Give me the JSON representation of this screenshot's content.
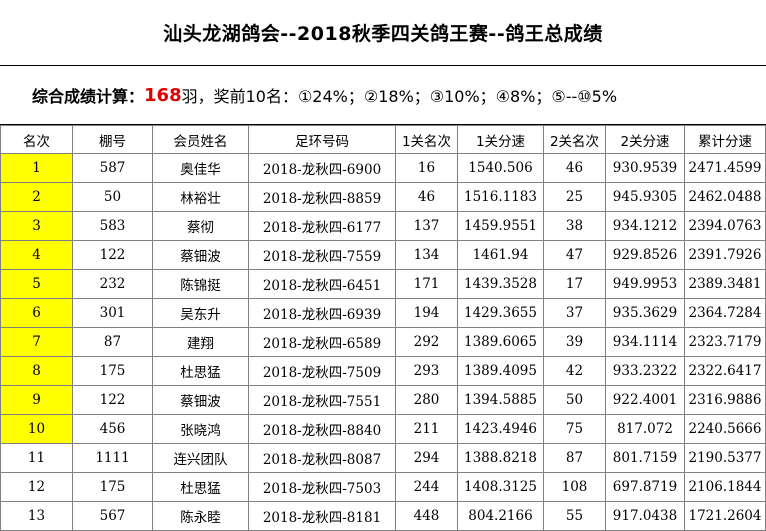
{
  "title": "汕头龙湖鸽会--2018秋季四关鸽王赛--鸽王总成绩",
  "formula": {
    "label": "综合成绩计算：",
    "count": "168",
    "after_count": "羽，奖前10名：①24%；②18%；③10%；④8%；⑤--⑩5%"
  },
  "highlight_color": "#ffff00",
  "columns": [
    "名次",
    "棚号",
    "会员姓名",
    "足环号码",
    "1关名次",
    "1关分速",
    "2关名次",
    "2关分速",
    "累计分速"
  ],
  "rows": [
    {
      "rank": "1",
      "loft": "587",
      "name": "奥佳华",
      "ring": "2018-龙秋四-6900",
      "r1": "16",
      "s1": "1540.506",
      "r2": "46",
      "s2": "930.9539",
      "total": "2471.4599",
      "highlight": true
    },
    {
      "rank": "2",
      "loft": "50",
      "name": "林裕壮",
      "ring": "2018-龙秋四-8859",
      "r1": "46",
      "s1": "1516.1183",
      "r2": "25",
      "s2": "945.9305",
      "total": "2462.0488",
      "highlight": true
    },
    {
      "rank": "3",
      "loft": "583",
      "name": "蔡彻",
      "ring": "2018-龙秋四-6177",
      "r1": "137",
      "s1": "1459.9551",
      "r2": "38",
      "s2": "934.1212",
      "total": "2394.0763",
      "highlight": true
    },
    {
      "rank": "4",
      "loft": "122",
      "name": "蔡钿波",
      "ring": "2018-龙秋四-7559",
      "r1": "134",
      "s1": "1461.94",
      "r2": "47",
      "s2": "929.8526",
      "total": "2391.7926",
      "highlight": true
    },
    {
      "rank": "5",
      "loft": "232",
      "name": "陈锦挺",
      "ring": "2018-龙秋四-6451",
      "r1": "171",
      "s1": "1439.3528",
      "r2": "17",
      "s2": "949.9953",
      "total": "2389.3481",
      "highlight": true
    },
    {
      "rank": "6",
      "loft": "301",
      "name": "吴东升",
      "ring": "2018-龙秋四-6939",
      "r1": "194",
      "s1": "1429.3655",
      "r2": "37",
      "s2": "935.3629",
      "total": "2364.7284",
      "highlight": true
    },
    {
      "rank": "7",
      "loft": "87",
      "name": "建翔",
      "ring": "2018-龙秋四-6589",
      "r1": "292",
      "s1": "1389.6065",
      "r2": "39",
      "s2": "934.1114",
      "total": "2323.7179",
      "highlight": true
    },
    {
      "rank": "8",
      "loft": "175",
      "name": "杜思猛",
      "ring": "2018-龙秋四-7509",
      "r1": "293",
      "s1": "1389.4095",
      "r2": "42",
      "s2": "933.2322",
      "total": "2322.6417",
      "highlight": true
    },
    {
      "rank": "9",
      "loft": "122",
      "name": "蔡钿波",
      "ring": "2018-龙秋四-7551",
      "r1": "280",
      "s1": "1394.5885",
      "r2": "50",
      "s2": "922.4001",
      "total": "2316.9886",
      "highlight": true
    },
    {
      "rank": "10",
      "loft": "456",
      "name": "张晓鸿",
      "ring": "2018-龙秋四-8840",
      "r1": "211",
      "s1": "1423.4946",
      "r2": "75",
      "s2": "817.072",
      "total": "2240.5666",
      "highlight": true
    },
    {
      "rank": "11",
      "loft": "1111",
      "name": "连兴团队",
      "ring": "2018-龙秋四-8087",
      "r1": "294",
      "s1": "1388.8218",
      "r2": "87",
      "s2": "801.7159",
      "total": "2190.5377",
      "highlight": false
    },
    {
      "rank": "12",
      "loft": "175",
      "name": "杜思猛",
      "ring": "2018-龙秋四-7503",
      "r1": "244",
      "s1": "1408.3125",
      "r2": "108",
      "s2": "697.8719",
      "total": "2106.1844",
      "highlight": false
    },
    {
      "rank": "13",
      "loft": "567",
      "name": "陈永睦",
      "ring": "2018-龙秋四-8181",
      "r1": "448",
      "s1": "804.2166",
      "r2": "55",
      "s2": "917.0438",
      "total": "1721.2604",
      "highlight": false
    }
  ]
}
